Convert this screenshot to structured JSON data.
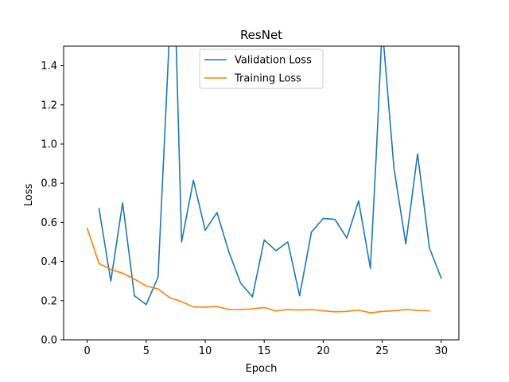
{
  "chart_data": {
    "type": "line",
    "title": "ResNet",
    "xlabel": "Epoch",
    "ylabel": "Loss",
    "xlim": [
      -2,
      31.5
    ],
    "ylim": [
      0.0,
      1.5
    ],
    "xticks": [
      0,
      5,
      10,
      15,
      20,
      25,
      30
    ],
    "yticks": [
      0.0,
      0.2,
      0.4,
      0.6,
      0.8,
      1.0,
      1.2,
      1.4
    ],
    "xtick_labels": [
      "0",
      "5",
      "10",
      "15",
      "20",
      "25",
      "30"
    ],
    "ytick_labels": [
      "0.0",
      "0.2",
      "0.4",
      "0.6",
      "0.8",
      "1.0",
      "1.2",
      "1.4"
    ],
    "grid": false,
    "legend_position": "upper-center",
    "series": [
      {
        "name": "Validation Loss",
        "color": "#1f77b4",
        "x": [
          1,
          2,
          3,
          4,
          5,
          6,
          7,
          7.5,
          8,
          9,
          10,
          11,
          12,
          13,
          14,
          15,
          16,
          17,
          18,
          19,
          20,
          21,
          22,
          23,
          24,
          24.5,
          25,
          26,
          27,
          28,
          29,
          30
        ],
        "y": [
          0.67,
          0.3,
          0.7,
          0.225,
          0.18,
          0.32,
          1.6,
          1.6,
          0.5,
          0.815,
          0.56,
          0.65,
          0.45,
          0.29,
          0.22,
          0.51,
          0.455,
          0.5,
          0.225,
          0.55,
          0.62,
          0.615,
          0.52,
          0.71,
          0.365,
          0.95,
          1.6,
          0.875,
          0.49,
          0.95,
          0.47,
          0.315
        ]
      },
      {
        "name": "Training Loss",
        "color": "#ff7f0e",
        "x": [
          0,
          1,
          2,
          3,
          4,
          5,
          6,
          7,
          8,
          9,
          10,
          11,
          12,
          13,
          14,
          15,
          16,
          17,
          18,
          19,
          20,
          21,
          22,
          23,
          24,
          25,
          26,
          27,
          28,
          29
        ],
        "y": [
          0.57,
          0.39,
          0.36,
          0.34,
          0.31,
          0.275,
          0.26,
          0.215,
          0.195,
          0.168,
          0.167,
          0.17,
          0.155,
          0.155,
          0.158,
          0.165,
          0.147,
          0.155,
          0.152,
          0.155,
          0.148,
          0.143,
          0.145,
          0.152,
          0.138,
          0.145,
          0.148,
          0.155,
          0.15,
          0.148
        ]
      }
    ]
  }
}
